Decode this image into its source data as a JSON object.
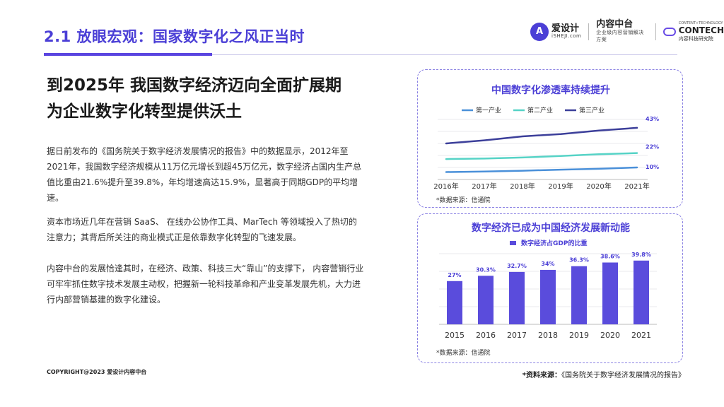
{
  "header": {
    "section_title": "2.1 放眼宏观：国家数字化之风正当时",
    "logo1_badge": "A",
    "logo1_name": "爱设计",
    "logo1_sub": "iSHEJI.com",
    "logo2_name": "内容中台",
    "logo2_sub": "企业级内容营销解决方案",
    "logo3_top": "CONTENT+TECHNOLOGY",
    "logo3_name": "CONTECH",
    "logo3_sub": "内容科技研究院"
  },
  "headline": {
    "line1": "到2025年 我国数字经济迈向全面扩展期",
    "line2": "为企业数字化转型提供沃土"
  },
  "paragraphs": [
    "据日前发布的《国务院关于数字经济发展情况的报告》中的数据显示，2012年至2021年，我国数字经济规模从11万亿元增长到超45万亿元，数字经济占国内生产总值比重由21.6%提升至39.8%，年均增速高达15.9%，显著高于同期GDP的平均增速。",
    "资本市场近几年在营销 SaaS、 在线办公协作工具、MarTech 等领域投入了热切的注意力；其背后所关注的商业模式正是依靠数字化转型的飞速发展。",
    "内容中台的发展恰逢其时，在经济、政策、科技三大“靠山”的支撑下， 内容营销行业可牢牢抓住数字技术发展主动权，把握新一轮科技革命和产业变革发展先机，大力进行内部营销基建的数字化建设。"
  ],
  "footer": {
    "copyright": "COPYRIGHT@2023 爱设计内容中台",
    "source_label": "*资料来源：",
    "source_text": "《国务院关于数字经济发展情况的报告》"
  },
  "chart_data": [
    {
      "type": "line",
      "title": "中国数字化渗透率持续提升",
      "x": [
        "2016年",
        "2017年",
        "2018年",
        "2019年",
        "2020年",
        "2021年"
      ],
      "series": [
        {
          "name": "第一产业",
          "values": [
            6.2,
            6.6,
            7.3,
            8.2,
            8.9,
            10
          ],
          "end_label": "10%",
          "color": "#4a90d9"
        },
        {
          "name": "第二产业",
          "values": [
            17,
            17.4,
            18.3,
            19.5,
            21.0,
            22
          ],
          "end_label": "22%",
          "color": "#56d3c6"
        },
        {
          "name": "第三产业",
          "values": [
            30,
            32.6,
            35.9,
            37.8,
            40.7,
            43
          ],
          "end_label": "43%",
          "color": "#3c3f9a"
        }
      ],
      "ylim": [
        0,
        50
      ],
      "legend": "top",
      "grid": true,
      "source": "*数据来源：信通院"
    },
    {
      "type": "bar",
      "title": "数字经济已成为中国经济发展新动能",
      "categories": [
        "2015",
        "2016",
        "2017",
        "2018",
        "2019",
        "2020",
        "2021"
      ],
      "series": [
        {
          "name": "数字经济占GDP的比重",
          "values": [
            27,
            30.3,
            32.7,
            34,
            36.3,
            38.6,
            39.8
          ]
        }
      ],
      "labels": [
        "27%",
        "30.3%",
        "32.7%",
        "34%",
        "36.3%",
        "38.6%",
        "39.8%"
      ],
      "ylim": [
        0,
        45
      ],
      "color": "#5a4cdc",
      "legend": "top",
      "grid": true,
      "source": "*数据来源：信通院"
    }
  ]
}
